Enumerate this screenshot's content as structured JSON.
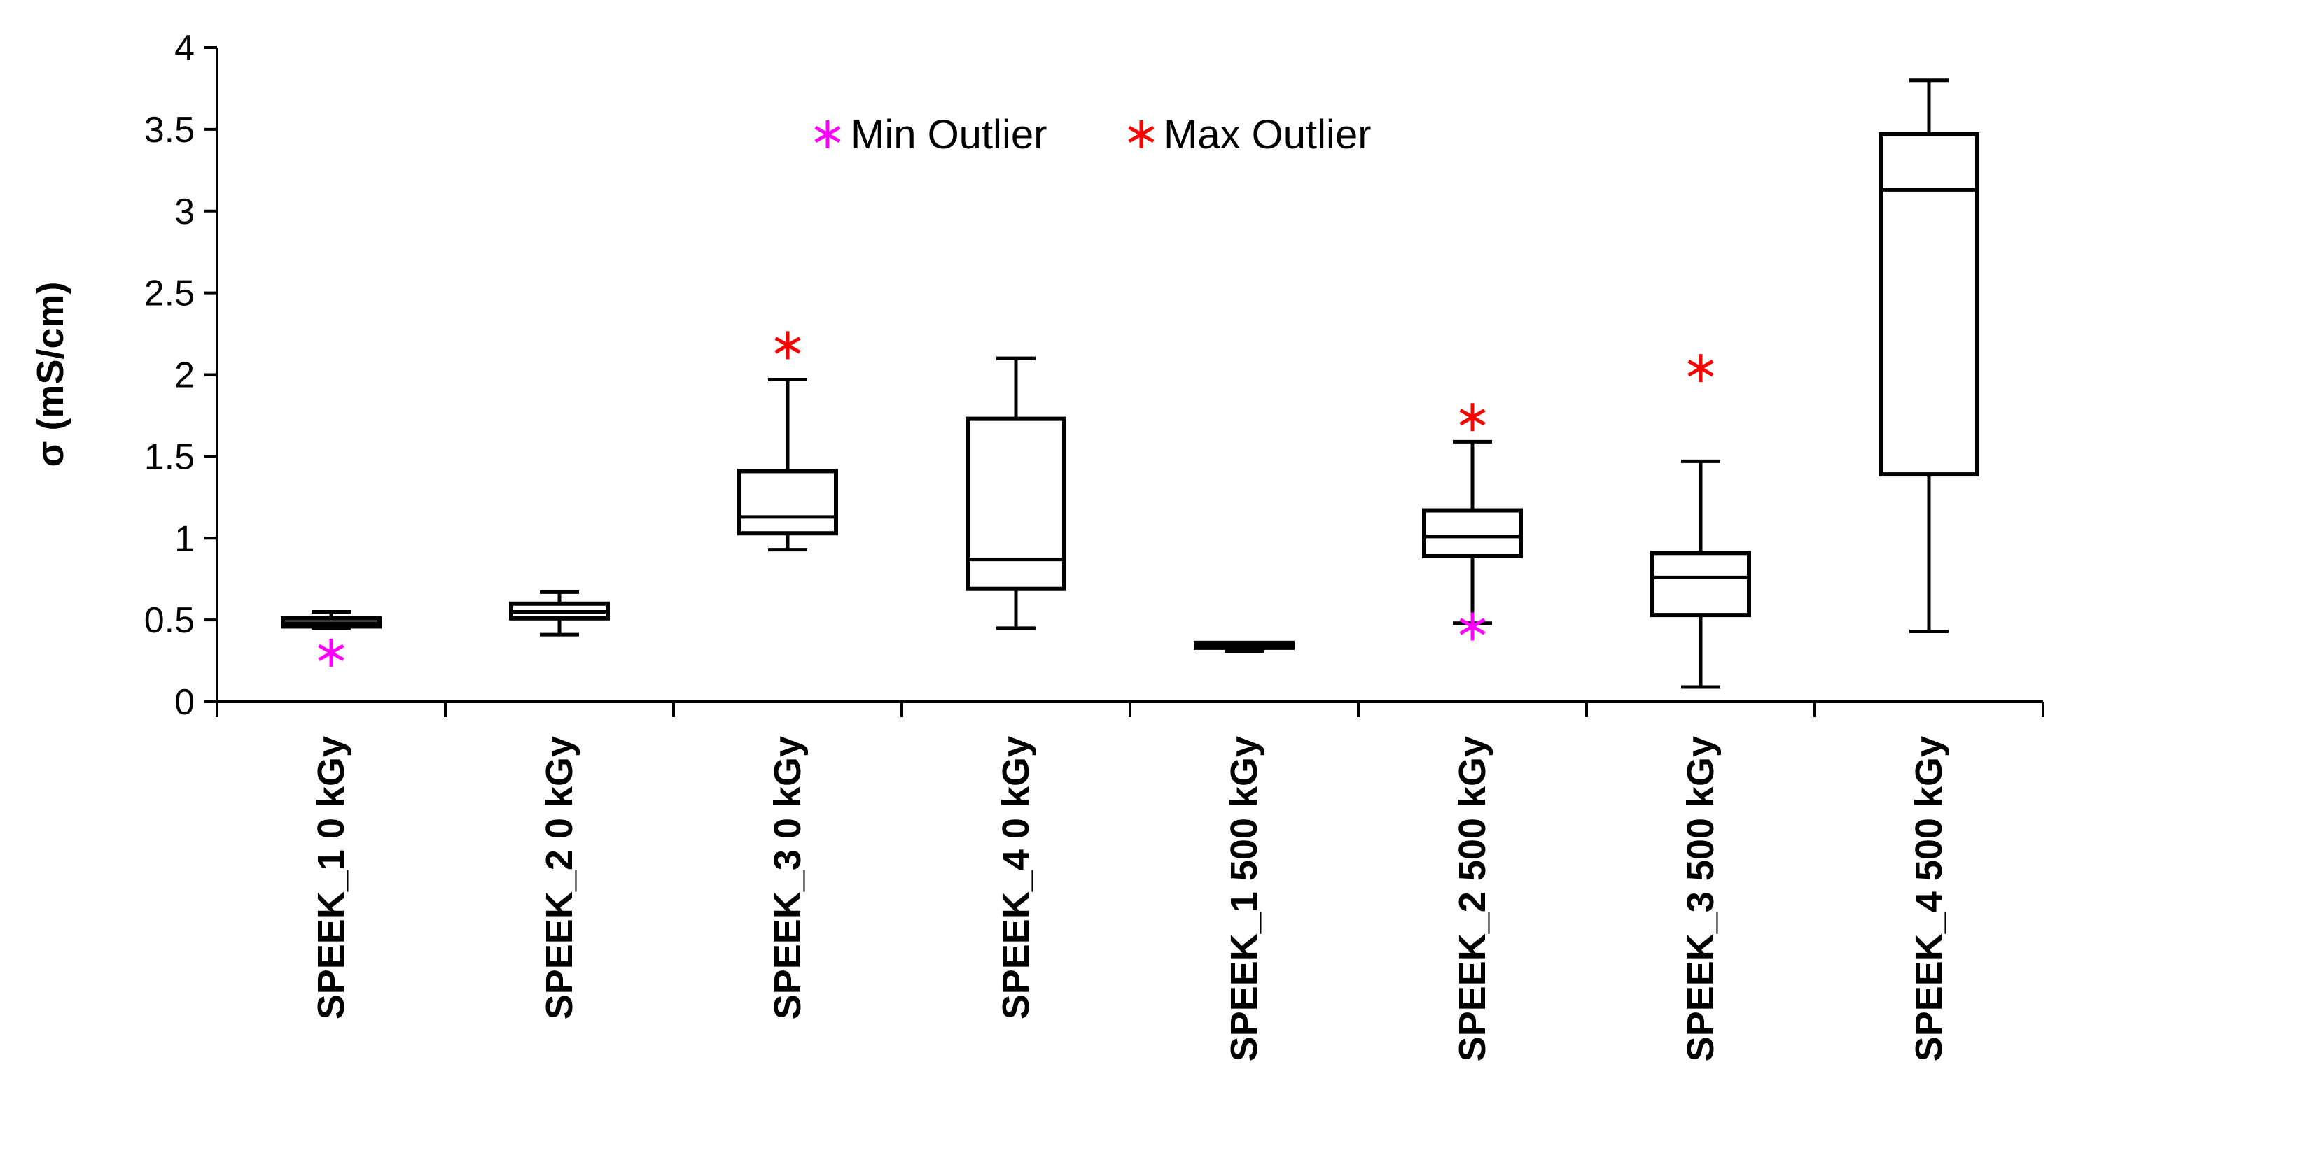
{
  "chart_data": {
    "type": "boxplot",
    "ylabel": "σ (mS/cm)",
    "xlabel": "",
    "ylim": [
      0,
      4
    ],
    "yticks": [
      "0",
      "0.5",
      "1",
      "1.5",
      "2",
      "2.5",
      "3",
      "3.5",
      "4"
    ],
    "grid": false,
    "legend_position": "top-center",
    "legend": [
      {
        "label": "Min Outlier",
        "color": "#FF00FF",
        "marker": "asterisk"
      },
      {
        "label": "Max Outlier",
        "color": "#FF0000",
        "marker": "asterisk"
      }
    ],
    "colors": {
      "box": "#000000",
      "min_outlier": "#FF00FF",
      "max_outlier": "#FF0000"
    },
    "categories": [
      "SPEEK_1 0 kGy",
      "SPEEK_2 0 kGy",
      "SPEEK_3 0 kGy",
      "SPEEK_4 0 kGy",
      "SPEEK_1 500 kGy",
      "SPEEK_2 500 kGy",
      "SPEEK_3 500 kGy",
      "SPEEK_4 500 kGy"
    ],
    "boxes": [
      {
        "whisker_low": 0.45,
        "q1": 0.46,
        "median": 0.48,
        "q3": 0.51,
        "whisker_high": 0.55,
        "min_outlier": 0.3,
        "max_outlier": null
      },
      {
        "whisker_low": 0.41,
        "q1": 0.51,
        "median": 0.55,
        "q3": 0.6,
        "whisker_high": 0.67,
        "min_outlier": null,
        "max_outlier": null
      },
      {
        "whisker_low": 0.93,
        "q1": 1.03,
        "median": 1.13,
        "q3": 1.41,
        "whisker_high": 1.97,
        "min_outlier": null,
        "max_outlier": 2.18
      },
      {
        "whisker_low": 0.45,
        "q1": 0.69,
        "median": 0.87,
        "q3": 1.73,
        "whisker_high": 2.1,
        "min_outlier": null,
        "max_outlier": null
      },
      {
        "whisker_low": 0.31,
        "q1": 0.33,
        "median": 0.34,
        "q3": 0.36,
        "whisker_high": 0.36,
        "min_outlier": null,
        "max_outlier": null
      },
      {
        "whisker_low": 0.48,
        "q1": 0.89,
        "median": 1.01,
        "q3": 1.17,
        "whisker_high": 1.59,
        "min_outlier": 0.46,
        "max_outlier": 1.74
      },
      {
        "whisker_low": 0.09,
        "q1": 0.53,
        "median": 0.76,
        "q3": 0.91,
        "whisker_high": 1.47,
        "min_outlier": null,
        "max_outlier": 2.04
      },
      {
        "whisker_low": 0.43,
        "q1": 1.39,
        "median": 3.13,
        "q3": 3.47,
        "whisker_high": 3.8,
        "min_outlier": null,
        "max_outlier": null
      }
    ]
  }
}
